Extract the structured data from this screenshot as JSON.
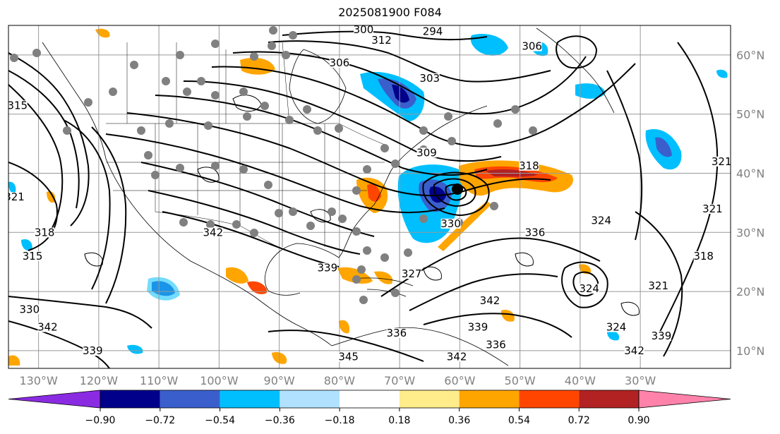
{
  "title": "2025081900 F084",
  "map": {
    "lon_range": [
      -135,
      -15
    ],
    "lat_range": [
      7,
      65
    ],
    "lon_ticks": [
      {
        "value": -130,
        "label": "130°W"
      },
      {
        "value": -120,
        "label": "120°W"
      },
      {
        "value": -110,
        "label": "110°W"
      },
      {
        "value": -100,
        "label": "100°W"
      },
      {
        "value": -90,
        "label": "90°W"
      },
      {
        "value": -80,
        "label": "80°W"
      },
      {
        "value": -70,
        "label": "70°W"
      },
      {
        "value": -60,
        "label": "60°W"
      },
      {
        "value": -50,
        "label": "50°W"
      },
      {
        "value": -40,
        "label": "40°W"
      },
      {
        "value": -30,
        "label": "30°W"
      }
    ],
    "lat_ticks": [
      {
        "value": 10,
        "label": "10°N"
      },
      {
        "value": 20,
        "label": "20°N"
      },
      {
        "value": 30,
        "label": "30°N"
      },
      {
        "value": 40,
        "label": "40°N"
      },
      {
        "value": 50,
        "label": "50°N"
      },
      {
        "value": 60,
        "label": "60°N"
      }
    ],
    "contour_labels": [
      {
        "text": "300",
        "lon": -76,
        "lat": 63.8
      },
      {
        "text": "294",
        "lon": -64.5,
        "lat": 63.5
      },
      {
        "text": "306",
        "lon": -80,
        "lat": 58.2
      },
      {
        "text": "303",
        "lon": -65,
        "lat": 55.6
      },
      {
        "text": "306",
        "lon": -48,
        "lat": 61
      },
      {
        "text": "312",
        "lon": -73,
        "lat": 62
      },
      {
        "text": "315",
        "lon": -133.5,
        "lat": 51
      },
      {
        "text": "321",
        "lon": -134,
        "lat": 35.5
      },
      {
        "text": "318",
        "lon": -129,
        "lat": 29.5
      },
      {
        "text": "315",
        "lon": -131,
        "lat": 25.5
      },
      {
        "text": "330",
        "lon": -131.5,
        "lat": 16.5
      },
      {
        "text": "342",
        "lon": -128.5,
        "lat": 13.5
      },
      {
        "text": "339",
        "lon": -121,
        "lat": 9.5
      },
      {
        "text": "342",
        "lon": -101,
        "lat": 29.5
      },
      {
        "text": "339",
        "lon": -82,
        "lat": 23.5
      },
      {
        "text": "345",
        "lon": -78.5,
        "lat": 8.5
      },
      {
        "text": "342",
        "lon": -60.5,
        "lat": 8.5
      },
      {
        "text": "336",
        "lon": -54,
        "lat": 10.5
      },
      {
        "text": "339",
        "lon": -57,
        "lat": 13.5
      },
      {
        "text": "342",
        "lon": -55,
        "lat": 18
      },
      {
        "text": "336",
        "lon": -47.5,
        "lat": 29.5
      },
      {
        "text": "324",
        "lon": -38.5,
        "lat": 20
      },
      {
        "text": "324",
        "lon": -34,
        "lat": 13.5
      },
      {
        "text": "339",
        "lon": -26.5,
        "lat": 12
      },
      {
        "text": "321",
        "lon": -27,
        "lat": 20.5
      },
      {
        "text": "318",
        "lon": -19.5,
        "lat": 25.5
      },
      {
        "text": "321",
        "lon": -18,
        "lat": 33.5
      },
      {
        "text": "321",
        "lon": -16.5,
        "lat": 41.5
      },
      {
        "text": "342",
        "lon": -31,
        "lat": 9.5
      },
      {
        "text": "324",
        "lon": -36.5,
        "lat": 31.5
      },
      {
        "text": "309",
        "lon": -65.5,
        "lat": 43
      },
      {
        "text": "318",
        "lon": -48.5,
        "lat": 40.8
      },
      {
        "text": "330",
        "lon": -61.5,
        "lat": 31
      },
      {
        "text": "327",
        "lon": -68,
        "lat": 22.5
      },
      {
        "text": "336",
        "lon": -70.5,
        "lat": 12.5
      }
    ]
  },
  "colorbar": {
    "ticks": [
      "−0.90",
      "−0.72",
      "−0.54",
      "−0.36",
      "−0.18",
      "0.18",
      "0.36",
      "0.54",
      "0.72",
      "0.90"
    ],
    "colors": [
      "#8a2be2",
      "#00008b",
      "#3a5fcd",
      "#00bfff",
      "#b0e2ff",
      "#ffffff",
      "#ffec8b",
      "#ffa500",
      "#ff4500",
      "#b22222",
      "#ff82ab"
    ]
  }
}
